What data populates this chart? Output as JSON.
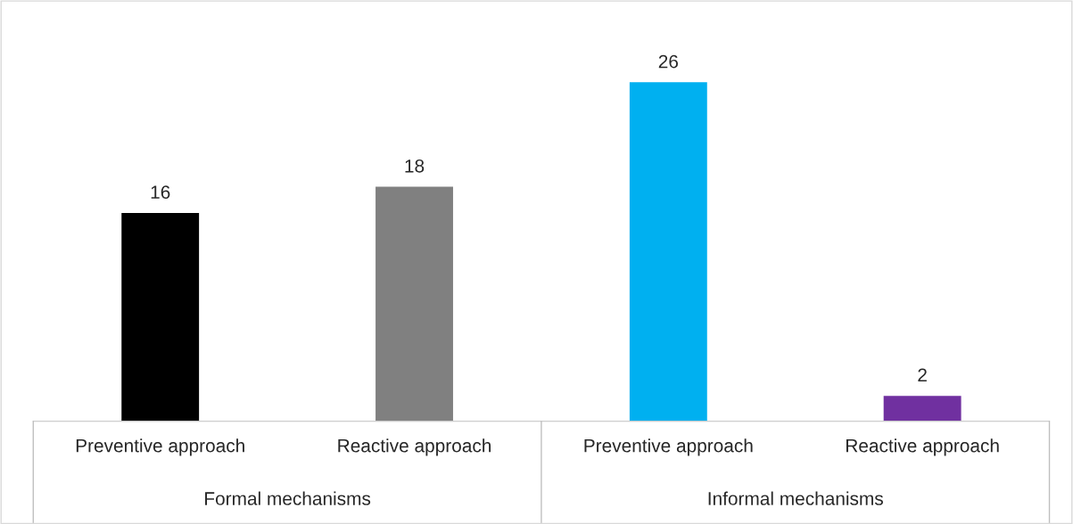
{
  "chart_data": {
    "type": "bar",
    "categories": [
      "Preventive approach",
      "Reactive approach",
      "Preventive approach",
      "Reactive approach"
    ],
    "values": [
      16,
      18,
      26,
      2
    ],
    "colors": [
      "#000000",
      "#808080",
      "#00b0f0",
      "#7030a0"
    ],
    "data_labels": true,
    "grid": false,
    "legend": false,
    "annotations": [
      "Formal mechanisms",
      "Informal mechanisms"
    ]
  }
}
